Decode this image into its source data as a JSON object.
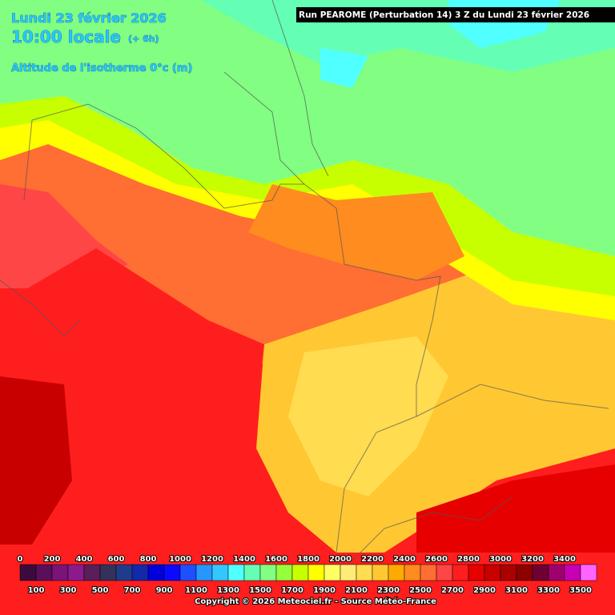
{
  "header": {
    "date": "Lundi 23 février 2026",
    "time": "10:00 locale",
    "offset": "(+ 6h)",
    "parameter": "Altitude de l'isotherme 0°c (m)"
  },
  "run": "Run PEAROME (Perturbation 14) 3 Z du Lundi 23 février 2026",
  "legend": {
    "top_labels": [
      "0",
      "200",
      "400",
      "600",
      "800",
      "1000",
      "1200",
      "1400",
      "1600",
      "1800",
      "2000",
      "2200",
      "2400",
      "2600",
      "2800",
      "3000",
      "3200",
      "3400"
    ],
    "bottom_labels": [
      "100",
      "300",
      "500",
      "700",
      "900",
      "1100",
      "1300",
      "1500",
      "1700",
      "1900",
      "2100",
      "2300",
      "2500",
      "2700",
      "2900",
      "3100",
      "3300",
      "3500"
    ],
    "colors": [
      "#3c0a3c",
      "#5a0f5a",
      "#7a1478",
      "#8c1a8c",
      "#5a1e5a",
      "#32325a",
      "#1e3c8c",
      "#1428aa",
      "#0000dc",
      "#0a0aff",
      "#1e50ff",
      "#2896ff",
      "#32c8ff",
      "#50ffff",
      "#64ffb4",
      "#82ff82",
      "#96ff3c",
      "#c8ff00",
      "#ffff00",
      "#ffff64",
      "#ffeb78",
      "#ffdc50",
      "#ffc832",
      "#ffaa00",
      "#ff8c1e",
      "#ff6e32",
      "#ff4646",
      "#ff1e1e",
      "#e60000",
      "#c80000",
      "#aa0000",
      "#8c0000",
      "#6e0032",
      "#a0006e",
      "#c800b4",
      "#ff64ff"
    ]
  },
  "copyright": "Copyright © 2026 Meteociel.fr - Source Météo-France"
}
